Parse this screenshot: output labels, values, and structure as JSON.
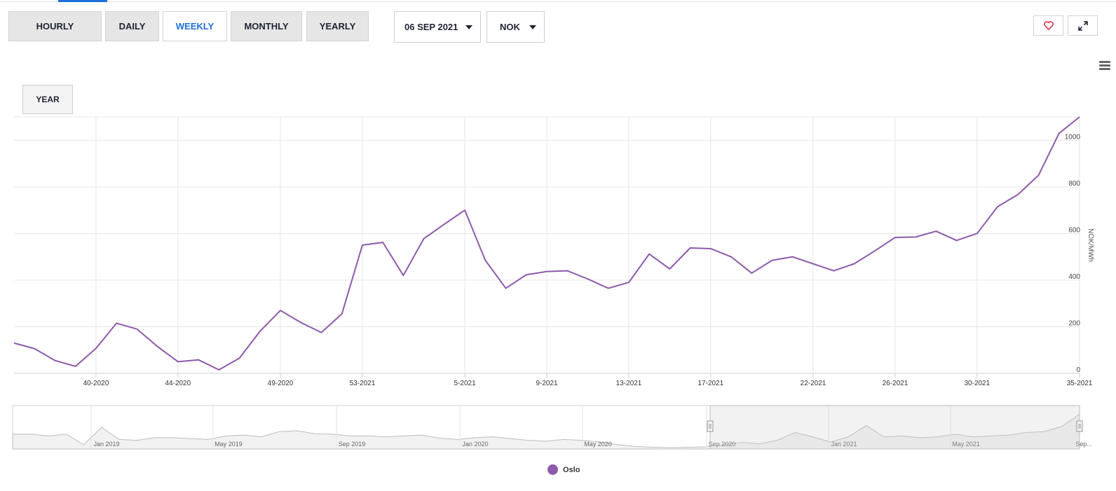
{
  "tabs": [
    {
      "label": "HOURLY",
      "active": false
    },
    {
      "label": "DAILY",
      "active": false
    },
    {
      "label": "WEEKLY",
      "active": true
    },
    {
      "label": "MONTHLY",
      "active": false
    },
    {
      "label": "YEARLY",
      "active": false
    }
  ],
  "date_select": {
    "value": "06 SEP 2021"
  },
  "currency_select": {
    "value": "NOK"
  },
  "actions": {
    "favorite_icon": "heart-icon",
    "fullscreen_icon": "expand-icon",
    "menu_icon": "hamburger-menu-icon"
  },
  "range_button": {
    "label": "YEAR"
  },
  "navigator": {
    "labels": [
      "Jan 2019",
      "May 2019",
      "Sep 2019",
      "Jan 2020",
      "May 2020",
      "Sep 2020",
      "Jan 2021",
      "May 2021",
      "Sep..."
    ],
    "selected_range": [
      "Sep 2020",
      "Sep 2021"
    ]
  },
  "legend": {
    "label": "Oslo"
  },
  "colors": {
    "series": "#8e5aab",
    "accent": "#1e6fd9",
    "heart": "#d23a52"
  },
  "chart_data": {
    "type": "line",
    "x_ticks": [
      "40-2020",
      "44-2020",
      "49-2020",
      "53-2021",
      "5-2021",
      "9-2021",
      "13-2021",
      "17-2021",
      "22-2021",
      "26-2021",
      "30-2021",
      "35-2021"
    ],
    "y_ticks": [
      0,
      200,
      400,
      600,
      800,
      1000
    ],
    "ylabel": "NOK/MWh",
    "ylim": [
      0,
      1100
    ],
    "grid": true,
    "series": [
      {
        "name": "Oslo",
        "x": [
          "36-2020",
          "37-2020",
          "38-2020",
          "39-2020",
          "40-2020",
          "41-2020",
          "42-2020",
          "43-2020",
          "44-2020",
          "45-2020",
          "46-2020",
          "47-2020",
          "48-2020",
          "49-2020",
          "50-2020",
          "51-2020",
          "52-2020",
          "53-2021",
          "1-2021",
          "2-2021",
          "3-2021",
          "4-2021",
          "5-2021",
          "6-2021",
          "7-2021",
          "8-2021",
          "9-2021",
          "10-2021",
          "11-2021",
          "12-2021",
          "13-2021",
          "14-2021",
          "15-2021",
          "16-2021",
          "17-2021",
          "18-2021",
          "19-2021",
          "20-2021",
          "21-2021",
          "22-2021",
          "23-2021",
          "24-2021",
          "25-2021",
          "26-2021",
          "27-2021",
          "28-2021",
          "29-2021",
          "30-2021",
          "31-2021",
          "32-2021",
          "33-2021",
          "34-2021",
          "35-2021"
        ],
        "values": [
          130,
          106,
          55,
          30,
          107,
          215,
          190,
          115,
          50,
          58,
          15,
          65,
          180,
          270,
          218,
          175,
          255,
          550,
          562,
          420,
          578,
          640,
          700,
          485,
          365,
          423,
          437,
          440,
          405,
          365,
          390,
          512,
          448,
          538,
          535,
          500,
          430,
          485,
          500,
          470,
          440,
          470,
          525,
          583,
          585,
          610,
          570,
          600,
          715,
          768,
          850,
          1030,
          1100
        ]
      }
    ]
  }
}
